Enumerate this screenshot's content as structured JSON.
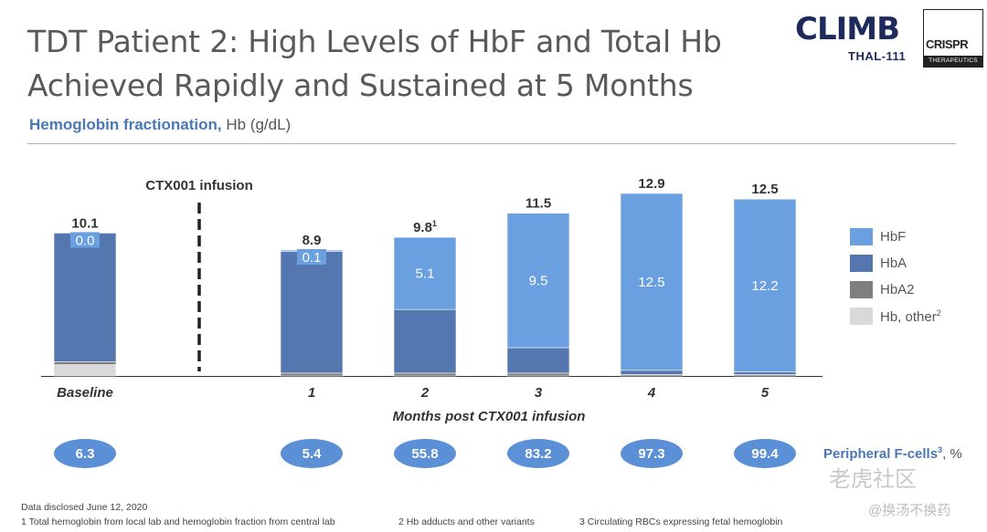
{
  "header": {
    "title_line1": "TDT Patient 2: High Levels of HbF and Total Hb",
    "title_line2": "Achieved Rapidly and Sustained at 5 Months",
    "subtitle_bold": "Hemoglobin fractionation,",
    "subtitle_unit": " Hb (g/dL)"
  },
  "logos": {
    "climb_word": "CLIMB",
    "climb_sub": "THAL-111",
    "crispr_word": "CRISPR",
    "crispr_sub": "THERAPEUTICS"
  },
  "chart_data": {
    "type": "bar",
    "stacked": true,
    "categories": [
      "Baseline",
      "1",
      "2",
      "3",
      "4",
      "5"
    ],
    "xlabel": "Months post CTX001 infusion",
    "ylabel": "Hb (g/dL)",
    "ylim": [
      0,
      12.9
    ],
    "annotation": "CTX001 infusion",
    "totals": [
      "10.1",
      "8.9",
      "9.8",
      "11.5",
      "12.9",
      "12.5"
    ],
    "total_superscripts": [
      "",
      "",
      "1",
      "",
      "",
      ""
    ],
    "series": [
      {
        "name": "Hb, other",
        "superscript": "2",
        "color": "#d9d9d9",
        "values": [
          0.8,
          0.0,
          0.0,
          0.0,
          0.0,
          0.0
        ]
      },
      {
        "name": "HbA2",
        "color": "#7f7f7f",
        "values": [
          0.2,
          0.2,
          0.2,
          0.2,
          0.1,
          0.1
        ]
      },
      {
        "name": "HbA",
        "color": "#5577b0",
        "values": [
          9.1,
          8.6,
          4.5,
          1.8,
          0.3,
          0.2
        ]
      },
      {
        "name": "HbF",
        "color": "#6a9fe0",
        "values": [
          0.0,
          0.1,
          5.1,
          9.5,
          12.5,
          12.2
        ]
      }
    ],
    "hbf_labels": [
      "0.0",
      "0.1",
      "5.1",
      "9.5",
      "12.5",
      "12.2"
    ],
    "peripheral_fcells": {
      "label": "Peripheral F-cells",
      "superscript": "3",
      "unit": ", %",
      "values": [
        "6.3",
        "5.4",
        "55.8",
        "83.2",
        "97.3",
        "99.4"
      ]
    },
    "legend_placement": "right"
  },
  "legend": [
    {
      "name": "HbF",
      "sup": "",
      "color": "#6a9fe0"
    },
    {
      "name": "HbA",
      "sup": "",
      "color": "#5577b0"
    },
    {
      "name": "HbA2",
      "sup": "",
      "color": "#7f7f7f"
    },
    {
      "name": "Hb, other",
      "sup": "2",
      "color": "#d9d9d9"
    }
  ],
  "footer": {
    "disclosed": "Data disclosed June 12, 2020",
    "fn1": "1  Total hemoglobin from local lab and hemoglobin fraction from central lab",
    "fn2": "2  Hb adducts and other variants",
    "fn3": "3  Circulating RBCs expressing fetal hemoglobin"
  },
  "watermark": {
    "line1": "老虎社区",
    "line2": "@换汤不换药"
  }
}
